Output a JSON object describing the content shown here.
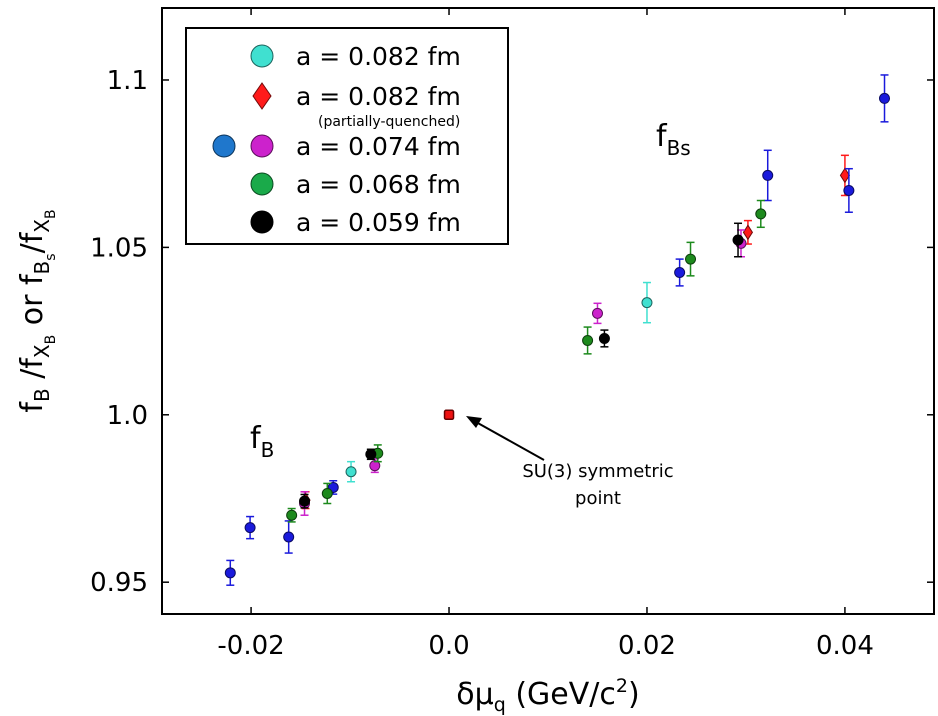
{
  "chart_data": {
    "type": "scatter",
    "xlabel": {
      "base": "δμ",
      "sub": "q",
      "rest": " (GeV/c",
      "sup": "2",
      "end": ")"
    },
    "ylabel": {
      "p1": "f",
      "p1sub": "B",
      "p2": " /f",
      "p2sub": "X",
      "p2subsub": "B",
      "p3": "  or f",
      "p3sub": "B",
      "p3subsub": "s",
      "p4": "/f",
      "p4sub": "X",
      "p4subsub": "B"
    },
    "xlim": [
      -0.029,
      0.049
    ],
    "ylim": [
      0.9405,
      1.1215
    ],
    "x_ticks": [
      -0.02,
      0.0,
      0.02,
      0.04
    ],
    "x_tick_labels": [
      "-0.02",
      "0.0",
      "0.02",
      "0.04"
    ],
    "y_ticks": [
      0.95,
      1.0,
      1.05,
      1.1
    ],
    "y_tick_labels": [
      "0.95",
      "1.0",
      "1.05",
      "1.1"
    ],
    "grid": false,
    "legend_position": "top-left",
    "legend": [
      {
        "markers": [
          "#40e0d0"
        ],
        "shape": "circle",
        "label": "a = 0.082 fm"
      },
      {
        "markers": [
          "#ff1a1a"
        ],
        "shape": "diamond",
        "label": "a = 0.082 fm",
        "note": "(partially-quenched)"
      },
      {
        "markers": [
          "#1f77cc",
          "#cc22cc"
        ],
        "shape": "circle",
        "label": "a = 0.074 fm"
      },
      {
        "markers": [
          "#1aaa4a"
        ],
        "shape": "circle",
        "label": "a = 0.068 fm"
      },
      {
        "markers": [
          "#000000"
        ],
        "shape": "circle",
        "label": "a = 0.059 fm"
      }
    ],
    "annotations": {
      "fB": {
        "base": "f",
        "sub": "B"
      },
      "fBs": {
        "base": "f",
        "sub": "Bs"
      },
      "su3_line1": "SU(3) symmetric",
      "su3_line2": "point"
    },
    "special_point": {
      "x": 0.0,
      "y": 1.0,
      "color": "#ee1111",
      "shape": "square"
    },
    "series": [
      {
        "color": "#40e0d0",
        "marker": "circle",
        "points": [
          {
            "x": -0.0099,
            "y": 0.983,
            "err": 0.003
          },
          {
            "x": 0.02,
            "y": 1.0335,
            "err": 0.006
          }
        ]
      },
      {
        "color": "#ff1a1a",
        "marker": "diamond",
        "points": [
          {
            "x": -0.0145,
            "y": 0.9745,
            "err": 0.0025
          },
          {
            "x": 0.0302,
            "y": 1.0545,
            "err": 0.0035
          },
          {
            "x": 0.04,
            "y": 1.0715,
            "err": 0.006
          }
        ]
      },
      {
        "color": "#1a1adc",
        "marker": "circle",
        "points": [
          {
            "x": -0.0221,
            "y": 0.9528,
            "err": 0.0037
          },
          {
            "x": -0.0201,
            "y": 0.9663,
            "err": 0.0033
          },
          {
            "x": -0.0162,
            "y": 0.9635,
            "err": 0.0048
          },
          {
            "x": -0.0117,
            "y": 0.9783,
            "err": 0.002
          },
          {
            "x": 0.0233,
            "y": 1.0425,
            "err": 0.004
          },
          {
            "x": 0.0322,
            "y": 1.0715,
            "err": 0.0075
          },
          {
            "x": 0.0404,
            "y": 1.067,
            "err": 0.0065
          },
          {
            "x": 0.044,
            "y": 1.0945,
            "err": 0.007
          }
        ]
      },
      {
        "color": "#cc22cc",
        "marker": "circle",
        "points": [
          {
            "x": -0.0146,
            "y": 0.9735,
            "err": 0.0035
          },
          {
            "x": -0.0075,
            "y": 0.9848,
            "err": 0.002
          },
          {
            "x": 0.015,
            "y": 1.0303,
            "err": 0.003
          },
          {
            "x": 0.0295,
            "y": 1.0512,
            "err": 0.004
          }
        ]
      },
      {
        "color": "#1d8a1d",
        "marker": "circle",
        "points": [
          {
            "x": -0.0159,
            "y": 0.97,
            "err": 0.002
          },
          {
            "x": -0.0123,
            "y": 0.9765,
            "err": 0.003
          },
          {
            "x": -0.0072,
            "y": 0.9885,
            "err": 0.0025
          },
          {
            "x": 0.014,
            "y": 1.0222,
            "err": 0.004
          },
          {
            "x": 0.0244,
            "y": 1.0465,
            "err": 0.005
          },
          {
            "x": 0.0315,
            "y": 1.06,
            "err": 0.004
          }
        ]
      },
      {
        "color": "#000000",
        "marker": "circle",
        "points": [
          {
            "x": -0.0146,
            "y": 0.9742,
            "err": 0.002
          },
          {
            "x": -0.0079,
            "y": 0.9882,
            "err": 0.0015
          },
          {
            "x": 0.0157,
            "y": 1.0228,
            "err": 0.0025
          },
          {
            "x": 0.0292,
            "y": 1.0522,
            "err": 0.005
          }
        ]
      }
    ]
  }
}
